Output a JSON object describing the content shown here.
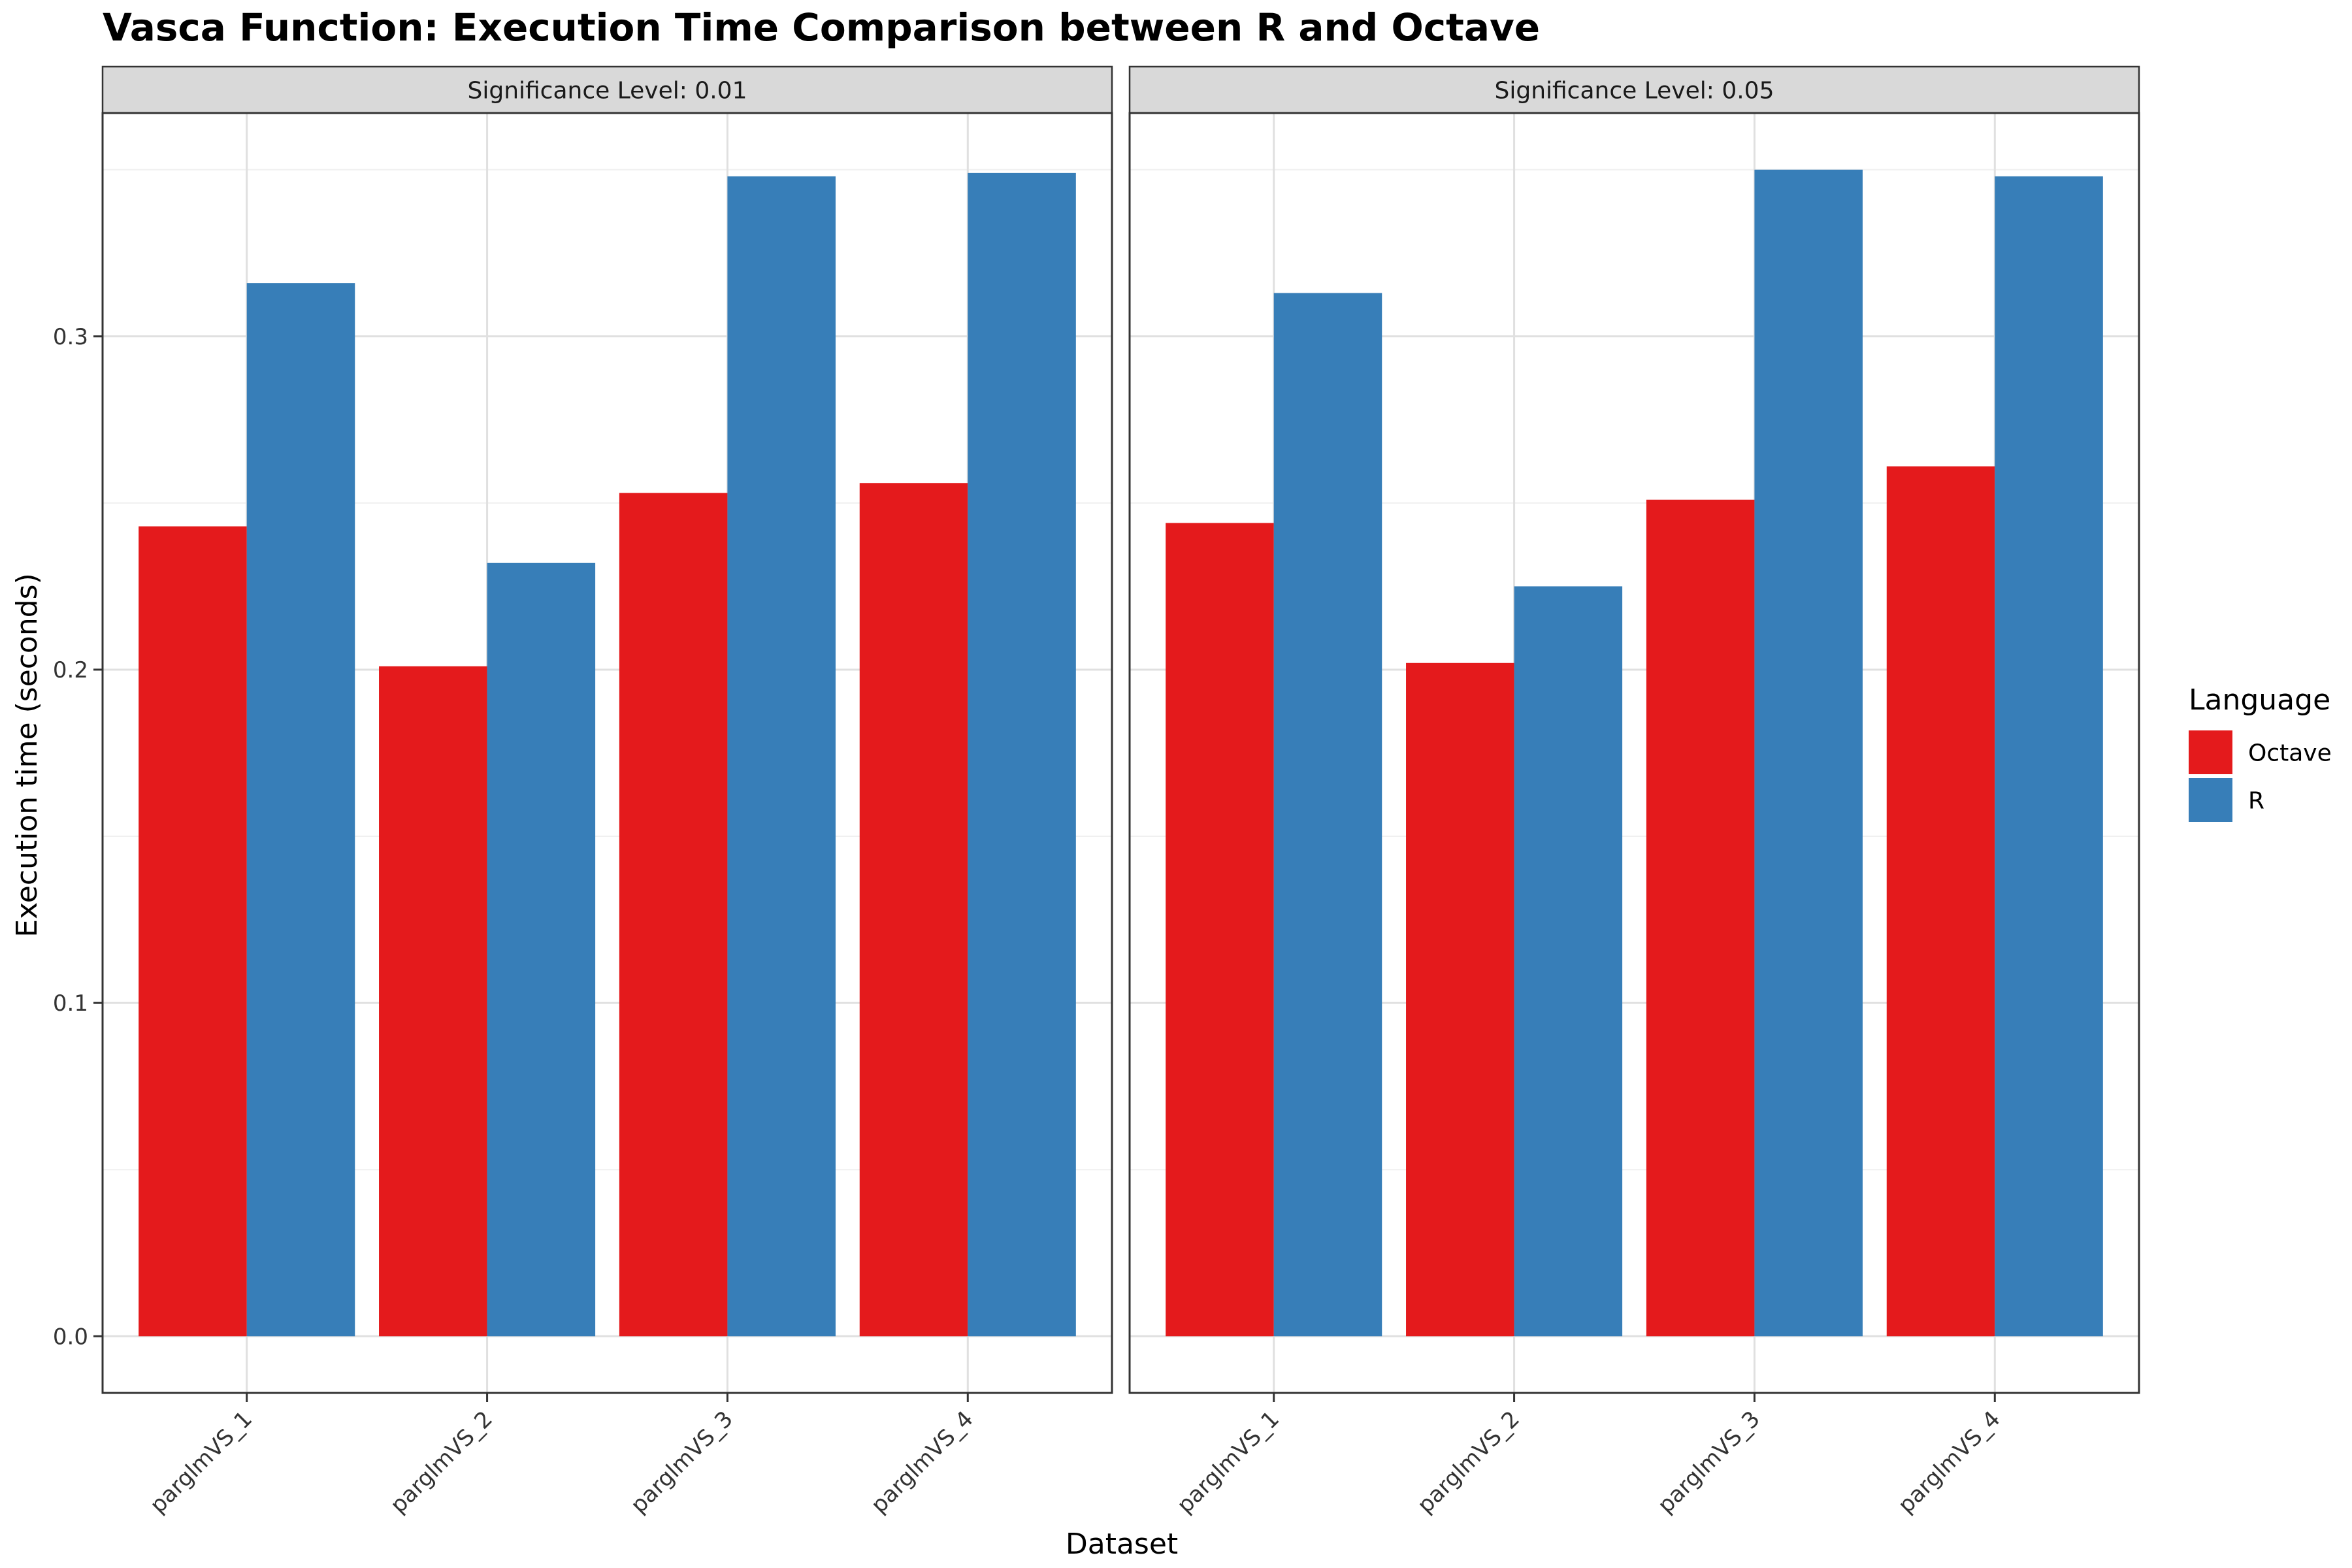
{
  "chart_data": {
    "type": "bar",
    "title": "Vasca Function: Execution Time Comparison between R and Octave",
    "xlabel": "Dataset",
    "ylabel": "Execution time (seconds)",
    "categories": [
      "parglmVS_1",
      "parglmVS_2",
      "parglmVS_3",
      "parglmVS_4"
    ],
    "y_ticks": [
      "0.0",
      "0.1",
      "0.2",
      "0.3"
    ],
    "ylim": [
      -0.017,
      0.367
    ],
    "grid": true,
    "legend": {
      "title": "Language",
      "position": "right",
      "entries": [
        "Octave",
        "R"
      ]
    },
    "colors": {
      "Octave": "#E41A1C",
      "R": "#377EB8"
    },
    "facets": [
      {
        "label": "Significance Level: 0.01",
        "series": [
          {
            "name": "Octave",
            "values": [
              0.243,
              0.201,
              0.253,
              0.256
            ]
          },
          {
            "name": "R",
            "values": [
              0.316,
              0.232,
              0.348,
              0.349
            ]
          }
        ]
      },
      {
        "label": "Significance Level: 0.05",
        "series": [
          {
            "name": "Octave",
            "values": [
              0.244,
              0.202,
              0.251,
              0.261
            ]
          },
          {
            "name": "R",
            "values": [
              0.313,
              0.225,
              0.35,
              0.348
            ]
          }
        ]
      }
    ]
  }
}
